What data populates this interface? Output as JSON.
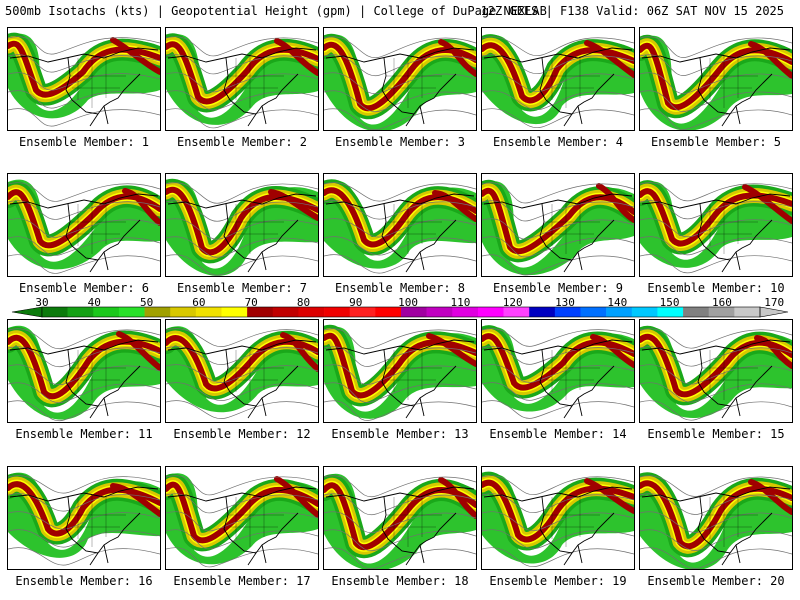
{
  "header": {
    "left": "500mb Isotachs (kts) | Geopotential Height (gpm) | College of DuPage NEXLAB",
    "right": "12Z GEFS | F138 Valid: 06Z SAT NOV 15 2025"
  },
  "panels": [
    {
      "label": "Ensemble Member: 1"
    },
    {
      "label": "Ensemble Member: 2"
    },
    {
      "label": "Ensemble Member: 3"
    },
    {
      "label": "Ensemble Member: 4"
    },
    {
      "label": "Ensemble Member: 5"
    },
    {
      "label": "Ensemble Member: 6"
    },
    {
      "label": "Ensemble Member: 7"
    },
    {
      "label": "Ensemble Member: 8"
    },
    {
      "label": "Ensemble Member: 9"
    },
    {
      "label": "Ensemble Member: 10"
    },
    {
      "label": "Ensemble Member: 11"
    },
    {
      "label": "Ensemble Member: 12"
    },
    {
      "label": "Ensemble Member: 13"
    },
    {
      "label": "Ensemble Member: 14"
    },
    {
      "label": "Ensemble Member: 15"
    },
    {
      "label": "Ensemble Member: 16"
    },
    {
      "label": "Ensemble Member: 17"
    },
    {
      "label": "Ensemble Member: 18"
    },
    {
      "label": "Ensemble Member: 19"
    },
    {
      "label": "Ensemble Member: 20"
    }
  ],
  "colorbar": {
    "ticks": [
      "30",
      "40",
      "50",
      "60",
      "70",
      "80",
      "90",
      "100",
      "110",
      "120",
      "130",
      "140",
      "150",
      "160",
      "170"
    ],
    "colors": [
      "#0b7a0b",
      "#15a015",
      "#1cc81c",
      "#28e028",
      "#a0a000",
      "#d8c800",
      "#f0e000",
      "#ffff00",
      "#a00000",
      "#c00000",
      "#dc0000",
      "#f00000",
      "#ff2020",
      "#ff0000",
      "#a000a0",
      "#c000c0",
      "#e000e0",
      "#ff00ff",
      "#ff40ff",
      "#0000c0",
      "#0040ff",
      "#0070ff",
      "#00a0ff",
      "#00c8ff",
      "#00ffff",
      "#808080",
      "#a0a0a0",
      "#c8c8c8"
    ]
  }
}
